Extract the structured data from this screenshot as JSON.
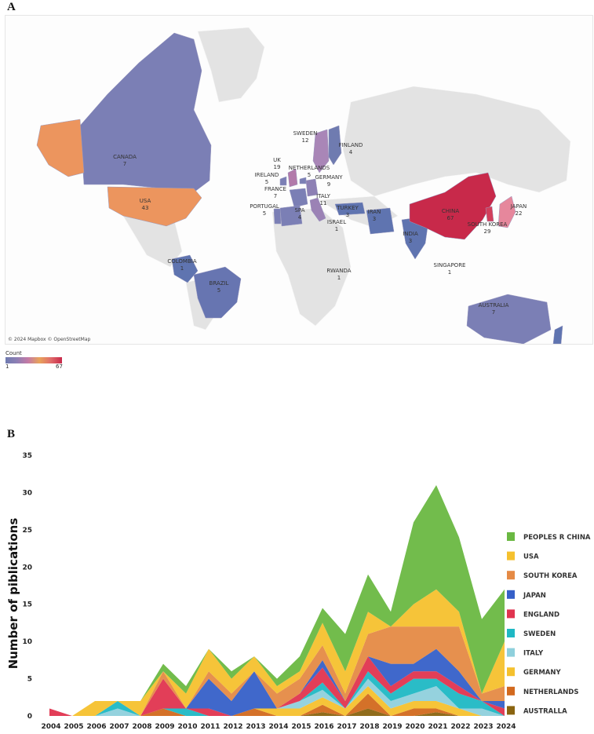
{
  "panel_a": {
    "letter": "A",
    "attribution": "© 2024 Mapbox © OpenStreetMap",
    "legend_title": "Count",
    "legend_min": "1",
    "legend_max": "67",
    "countries": [
      {
        "name": "CANADA",
        "count": "7"
      },
      {
        "name": "USA",
        "count": "43"
      },
      {
        "name": "SWEDEN",
        "count": "12"
      },
      {
        "name": "FINLAND",
        "count": "4"
      },
      {
        "name": "UK",
        "count": "19"
      },
      {
        "name": "NETHERLANDS",
        "count": "5"
      },
      {
        "name": "IRELAND",
        "count": "5"
      },
      {
        "name": "GERMANY",
        "count": "9"
      },
      {
        "name": "FRANCE",
        "count": "7"
      },
      {
        "name": "ITALY",
        "count": "11"
      },
      {
        "name": "PORTUGAL",
        "count": "5"
      },
      {
        "name": "SPA",
        "count": "4"
      },
      {
        "name": "TURKEY",
        "count": "3"
      },
      {
        "name": "IRAN",
        "count": "3"
      },
      {
        "name": "ISRAEL",
        "count": "1"
      },
      {
        "name": "CHINA",
        "count": "67"
      },
      {
        "name": "JAPAN",
        "count": "22"
      },
      {
        "name": "SOUTH KOREA",
        "count": "29"
      },
      {
        "name": "INDIA",
        "count": "3"
      },
      {
        "name": "COLOMBIA",
        "count": "1"
      },
      {
        "name": "BRAZIL",
        "count": "5"
      },
      {
        "name": "RWANDA",
        "count": "1"
      },
      {
        "name": "SINGAPORE",
        "count": "1"
      },
      {
        "name": "AUSTRALIA",
        "count": "7"
      }
    ],
    "colors": {
      "low": "#7b7fb5",
      "mid": "#b27aaa",
      "high": "#c8294a",
      "orange": "#ec955e",
      "land": "#e4e4e4"
    }
  },
  "panel_b": {
    "letter": "B"
  },
  "chart_data": {
    "type": "area",
    "stacked": true,
    "ylabel": "Number of piblications",
    "ylim": [
      0,
      35
    ],
    "yticks": [
      0,
      5,
      10,
      15,
      20,
      25,
      30,
      35
    ],
    "x": [
      "2004",
      "2005",
      "2006",
      "2007",
      "2008",
      "2009",
      "2010",
      "2011",
      "2012",
      "2013",
      "2014",
      "2015",
      "2016",
      "2017",
      "2018",
      "2019",
      "2020",
      "2021",
      "2022",
      "2023",
      "2024"
    ],
    "legend_position": "right",
    "series": [
      {
        "name": "AUSTRALLA",
        "color": "#8a6410",
        "values": [
          0,
          0,
          0,
          0,
          0,
          0,
          0,
          0,
          0,
          0,
          0,
          0,
          0.5,
          0,
          1,
          0,
          0,
          0.5,
          0,
          0,
          0
        ]
      },
      {
        "name": "NETHERLANDS",
        "color": "#d2691e",
        "values": [
          0,
          0,
          0,
          0,
          0,
          1,
          0,
          0,
          0,
          1,
          0,
          0,
          1,
          0,
          2,
          0,
          1,
          0.5,
          0,
          0,
          0
        ]
      },
      {
        "name": "GERMANY",
        "color": "#f5c12e",
        "values": [
          0,
          0,
          0,
          0,
          0,
          0,
          0,
          0,
          0,
          0,
          1,
          1,
          1,
          1,
          1,
          1,
          1,
          1,
          1,
          0,
          0
        ]
      },
      {
        "name": "ITALY",
        "color": "#8fd0dc",
        "values": [
          0,
          0,
          0,
          1,
          0,
          0,
          0,
          0,
          0,
          0,
          0,
          1,
          1,
          0,
          1,
          1,
          1,
          2,
          0,
          1,
          0
        ]
      },
      {
        "name": "SWEDEN",
        "color": "#1fb8c4",
        "values": [
          0,
          0,
          0,
          1,
          0,
          0,
          1,
          0,
          0,
          0,
          0,
          0,
          1,
          0,
          1,
          1,
          2,
          1,
          2,
          1,
          0
        ]
      },
      {
        "name": "ENGLAND",
        "color": "#e0344f",
        "values": [
          1,
          0,
          0,
          0,
          0,
          4,
          0,
          1,
          0,
          0,
          0,
          1,
          2,
          1,
          2,
          1,
          1,
          1,
          1,
          0,
          1
        ]
      },
      {
        "name": "JAPAN",
        "color": "#3660c8",
        "values": [
          0,
          0,
          0,
          0,
          0,
          0,
          0,
          4,
          2,
          5,
          0,
          0,
          1,
          0,
          0,
          3,
          1,
          3,
          2,
          0,
          1
        ]
      },
      {
        "name": "SOUTH KOREA",
        "color": "#e58a45",
        "values": [
          0,
          0,
          0,
          0,
          0,
          1,
          0,
          1,
          1,
          0,
          2,
          2,
          2,
          1,
          3,
          5,
          5,
          3,
          6,
          1,
          2
        ]
      },
      {
        "name": "USA",
        "color": "#f5c12e",
        "values": [
          0,
          0,
          2,
          0,
          2,
          0,
          2,
          3,
          2,
          2,
          1,
          1,
          3,
          3,
          3,
          0,
          3,
          5,
          2,
          0,
          6
        ]
      },
      {
        "name": "PEOPLES R CHINA",
        "color": "#6ab842",
        "values": [
          0,
          0,
          0,
          0,
          0,
          1,
          1,
          0,
          1,
          0,
          1,
          2,
          2,
          5,
          5,
          2,
          11,
          14,
          10,
          10,
          7
        ]
      }
    ]
  }
}
